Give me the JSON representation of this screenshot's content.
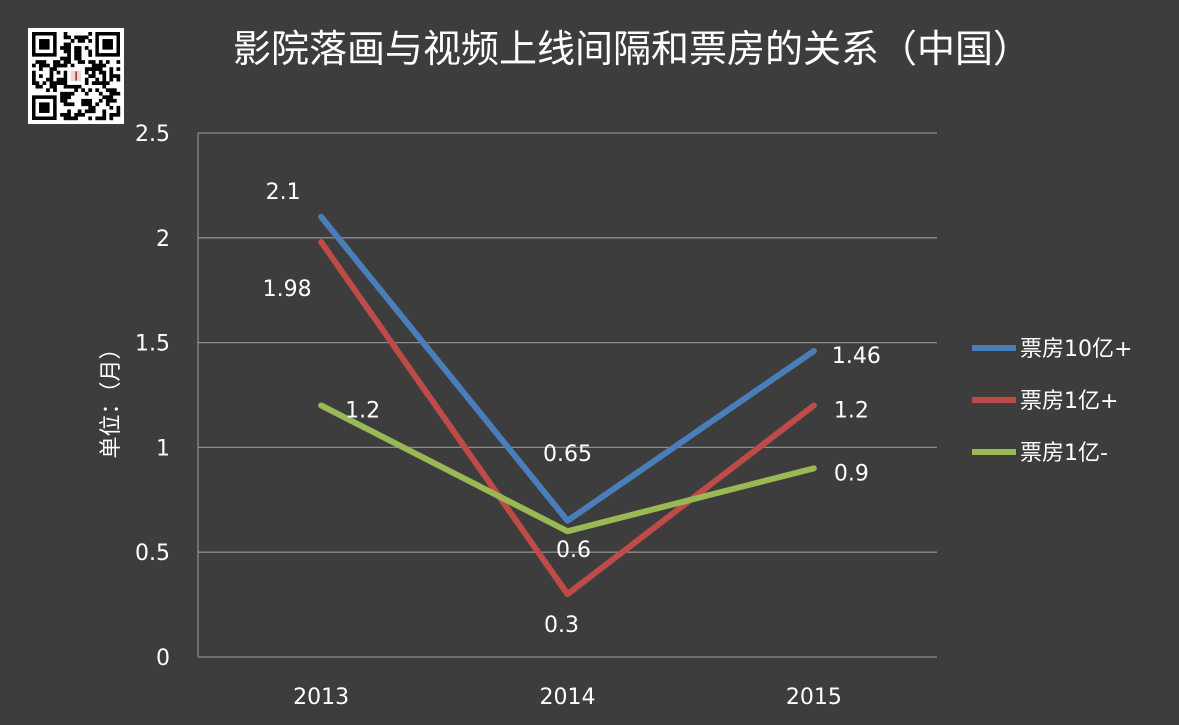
{
  "colors": {
    "background": "#3d3d3d",
    "grid": "#8c8c8c",
    "text": "#ffffff"
  },
  "qr_code": {
    "icon": "qr-code-icon"
  },
  "chart_data": {
    "type": "line",
    "title": "影院落画与视频上线间隔和票房的关系（中国）",
    "xlabel": "",
    "ylabel": "单位：（月）",
    "categories": [
      "2013",
      "2014",
      "2015"
    ],
    "ylim": [
      0,
      2.5
    ],
    "yticks": [
      "0",
      "0.5",
      "1",
      "1.5",
      "2",
      "2.5"
    ],
    "grid": true,
    "legend_position": "right",
    "series": [
      {
        "name": "票房10亿+",
        "color": "#4a7ebb",
        "values": [
          2.1,
          0.65,
          1.46
        ],
        "labels": [
          "2.1",
          "0.65",
          "1.46"
        ]
      },
      {
        "name": "票房1亿+",
        "color": "#be4b48",
        "values": [
          1.98,
          0.3,
          1.2
        ],
        "labels": [
          "1.98",
          "0.3",
          "1.2"
        ]
      },
      {
        "name": "票房1亿-",
        "color": "#98b954",
        "values": [
          1.2,
          0.6,
          0.9
        ],
        "labels": [
          "1.2",
          "0.6",
          "0.9"
        ]
      }
    ]
  }
}
